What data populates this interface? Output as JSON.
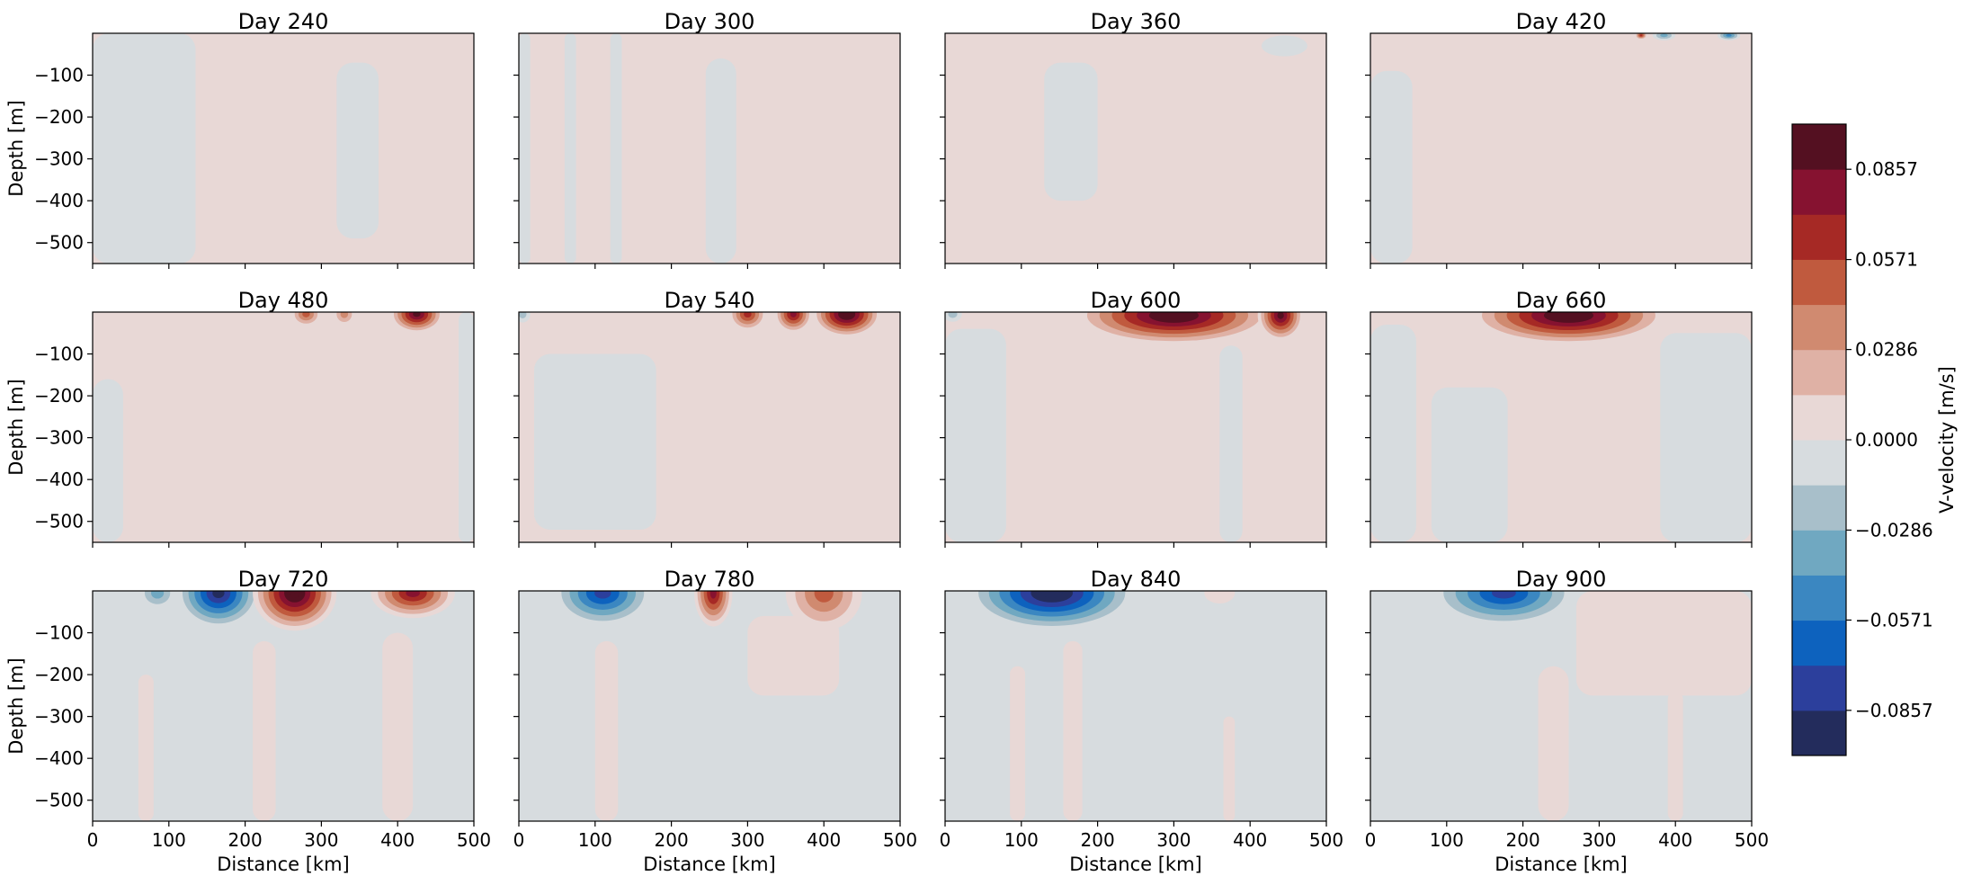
{
  "chart_data": {
    "type": "heatmap",
    "layout": {
      "rows": 3,
      "cols": 4,
      "sharex": true,
      "sharey": true
    },
    "xlabel": "Distance [km]",
    "ylabel": "Depth [m]",
    "xlim": [
      0,
      500
    ],
    "ylim": [
      -550,
      0
    ],
    "xticks": [
      0,
      100,
      200,
      300,
      400,
      500
    ],
    "yticks": [
      -100,
      -200,
      -300,
      -400,
      -500
    ],
    "xtick_labels": [
      "0",
      "100",
      "200",
      "300",
      "400",
      "500"
    ],
    "ytick_labels": [
      "−100",
      "−200",
      "−300",
      "−400",
      "−500"
    ],
    "colorbar": {
      "label": "V-velocity [m/s]",
      "vmin": -0.1,
      "vmax": 0.1,
      "levels": 14,
      "ticks": [
        0.0857,
        0.0571,
        0.0286,
        0.0,
        -0.0286,
        -0.0571,
        -0.0857
      ],
      "tick_labels": [
        "0.0857",
        "0.0571",
        "0.0286",
        "0.0000",
        "−0.0286",
        "−0.0571",
        "−0.0857"
      ],
      "colors": [
        "#232c5c",
        "#2c3f9c",
        "#0d62be",
        "#3b87c1",
        "#70a8c1",
        "#a8bfca",
        "#d7dcdf",
        "#e8d8d6",
        "#dfb1a5",
        "#d08a70",
        "#c05a3e",
        "#a62925",
        "#861230",
        "#541021"
      ]
    },
    "panels": [
      {
        "title": "Day 240",
        "background": 0.005,
        "features": [
          {
            "type": "band",
            "x": 0,
            "x2": 135,
            "y": -550,
            "y2": 0,
            "v": -0.004
          },
          {
            "type": "band",
            "x": 320,
            "x2": 375,
            "y": -490,
            "y2": -70,
            "v": -0.004
          }
        ]
      },
      {
        "title": "Day 300",
        "background": 0.005,
        "features": [
          {
            "type": "band",
            "x": 245,
            "x2": 285,
            "y": -550,
            "y2": -60,
            "v": -0.004
          },
          {
            "type": "band",
            "x": 0,
            "x2": 15,
            "y": -550,
            "y2": 0,
            "v": -0.004
          },
          {
            "type": "band",
            "x": 60,
            "x2": 75,
            "y": -550,
            "y2": 0,
            "v": -0.004
          },
          {
            "type": "band",
            "x": 120,
            "x2": 135,
            "y": -550,
            "y2": 0,
            "v": -0.004
          }
        ]
      },
      {
        "title": "Day 360",
        "background": 0.005,
        "features": [
          {
            "type": "band",
            "x": 130,
            "x2": 200,
            "y": -400,
            "y2": -70,
            "v": -0.004
          },
          {
            "type": "blob",
            "x": 445,
            "y": -30,
            "rx": 30,
            "ry": 25,
            "v": -0.004
          }
        ]
      },
      {
        "title": "Day 420",
        "background": 0.005,
        "features": [
          {
            "type": "band",
            "x": 0,
            "x2": 55,
            "y": -550,
            "y2": -90,
            "v": -0.004
          },
          {
            "type": "blob",
            "x": 355,
            "y": -5,
            "rx": 8,
            "ry": 10,
            "v": 0.07
          },
          {
            "type": "blob",
            "x": 385,
            "y": -5,
            "rx": 15,
            "ry": 12,
            "v": -0.04
          },
          {
            "type": "blob",
            "x": 470,
            "y": -5,
            "rx": 15,
            "ry": 12,
            "v": -0.05
          }
        ]
      },
      {
        "title": "Day 480",
        "background": 0.005,
        "features": [
          {
            "type": "band",
            "x": 0,
            "x2": 40,
            "y": -550,
            "y2": -160,
            "v": -0.004
          },
          {
            "type": "band",
            "x": 480,
            "x2": 500,
            "y": -550,
            "y2": 0,
            "v": -0.004
          },
          {
            "type": "blob",
            "x": 280,
            "y": -5,
            "rx": 20,
            "ry": 30,
            "v": 0.06
          },
          {
            "type": "blob",
            "x": 330,
            "y": -5,
            "rx": 15,
            "ry": 28,
            "v": 0.045
          },
          {
            "type": "blob",
            "x": 425,
            "y": -5,
            "rx": 35,
            "ry": 45,
            "v": 0.1
          }
        ]
      },
      {
        "title": "Day 540",
        "background": 0.005,
        "features": [
          {
            "type": "band",
            "x": 20,
            "x2": 180,
            "y": -520,
            "y2": -100,
            "v": -0.004
          },
          {
            "type": "blob",
            "x": 300,
            "y": -5,
            "rx": 25,
            "ry": 40,
            "v": 0.07
          },
          {
            "type": "blob",
            "x": 360,
            "y": -5,
            "rx": 25,
            "ry": 45,
            "v": 0.08
          },
          {
            "type": "blob",
            "x": 430,
            "y": -5,
            "rx": 45,
            "ry": 55,
            "v": 0.12
          },
          {
            "type": "blob",
            "x": 5,
            "y": -5,
            "rx": 10,
            "ry": 20,
            "v": -0.03
          }
        ]
      },
      {
        "title": "Day 600",
        "background": 0.005,
        "features": [
          {
            "type": "band",
            "x": 0,
            "x2": 80,
            "y": -550,
            "y2": -40,
            "v": -0.004
          },
          {
            "type": "band",
            "x": 360,
            "x2": 390,
            "y": -550,
            "y2": -80,
            "v": -0.004
          },
          {
            "type": "blob",
            "x": 300,
            "y": -8,
            "rx": 130,
            "ry": 70,
            "v": 0.12
          },
          {
            "type": "blob",
            "x": 440,
            "y": -8,
            "rx": 30,
            "ry": 60,
            "v": 0.1
          },
          {
            "type": "blob",
            "x": 10,
            "y": -5,
            "rx": 12,
            "ry": 18,
            "v": -0.03
          }
        ]
      },
      {
        "title": "Day 660",
        "background": 0.005,
        "features": [
          {
            "type": "band",
            "x": 0,
            "x2": 60,
            "y": -550,
            "y2": -30,
            "v": -0.004
          },
          {
            "type": "band",
            "x": 80,
            "x2": 180,
            "y": -550,
            "y2": -180,
            "v": -0.004
          },
          {
            "type": "band",
            "x": 380,
            "x2": 500,
            "y": -550,
            "y2": -50,
            "v": -0.004
          },
          {
            "type": "blob",
            "x": 260,
            "y": -8,
            "rx": 130,
            "ry": 70,
            "v": 0.12
          }
        ]
      },
      {
        "title": "Day 720",
        "background": -0.004,
        "features": [
          {
            "type": "band",
            "x": 210,
            "x2": 240,
            "y": -550,
            "y2": -120,
            "v": 0.005
          },
          {
            "type": "band",
            "x": 380,
            "x2": 420,
            "y": -550,
            "y2": -100,
            "v": 0.005
          },
          {
            "type": "band",
            "x": 60,
            "x2": 80,
            "y": -550,
            "y2": -200,
            "v": 0.005
          },
          {
            "type": "blob",
            "x": 165,
            "y": -5,
            "rx": 55,
            "ry": 85,
            "v": -0.1
          },
          {
            "type": "blob",
            "x": 265,
            "y": -5,
            "rx": 55,
            "ry": 90,
            "v": 0.11
          },
          {
            "type": "blob",
            "x": 420,
            "y": -5,
            "rx": 55,
            "ry": 60,
            "v": 0.09
          },
          {
            "type": "blob",
            "x": 85,
            "y": -5,
            "rx": 25,
            "ry": 40,
            "v": -0.04
          }
        ]
      },
      {
        "title": "Day 780",
        "background": -0.004,
        "features": [
          {
            "type": "band",
            "x": 100,
            "x2": 130,
            "y": -550,
            "y2": -120,
            "v": 0.005
          },
          {
            "type": "band",
            "x": 300,
            "x2": 420,
            "y": -250,
            "y2": -60,
            "v": 0.005
          },
          {
            "type": "blob",
            "x": 110,
            "y": -5,
            "rx": 65,
            "ry": 80,
            "v": -0.09
          },
          {
            "type": "blob",
            "x": 255,
            "y": -5,
            "rx": 25,
            "ry": 80,
            "v": 0.09
          },
          {
            "type": "blob",
            "x": 400,
            "y": -5,
            "rx": 50,
            "ry": 90,
            "v": 0.06
          }
        ]
      },
      {
        "title": "Day 840",
        "background": -0.004,
        "features": [
          {
            "type": "band",
            "x": 85,
            "x2": 105,
            "y": -550,
            "y2": -180,
            "v": 0.005
          },
          {
            "type": "band",
            "x": 155,
            "x2": 180,
            "y": -550,
            "y2": -120,
            "v": 0.005
          },
          {
            "type": "band",
            "x": 365,
            "x2": 380,
            "y": -550,
            "y2": -300,
            "v": 0.005
          },
          {
            "type": "blob",
            "x": 140,
            "y": -5,
            "rx": 110,
            "ry": 90,
            "v": -0.11
          },
          {
            "type": "blob",
            "x": 360,
            "y": -5,
            "rx": 20,
            "ry": 25,
            "v": 0.02
          }
        ]
      },
      {
        "title": "Day 900",
        "background": -0.004,
        "features": [
          {
            "type": "band",
            "x": 270,
            "x2": 500,
            "y": -250,
            "y2": 0,
            "v": 0.005
          },
          {
            "type": "band",
            "x": 220,
            "x2": 260,
            "y": -550,
            "y2": -180,
            "v": 0.005
          },
          {
            "type": "band",
            "x": 390,
            "x2": 410,
            "y": -550,
            "y2": -240,
            "v": 0.005
          },
          {
            "type": "blob",
            "x": 175,
            "y": -5,
            "rx": 95,
            "ry": 80,
            "v": -0.09
          }
        ]
      }
    ]
  }
}
